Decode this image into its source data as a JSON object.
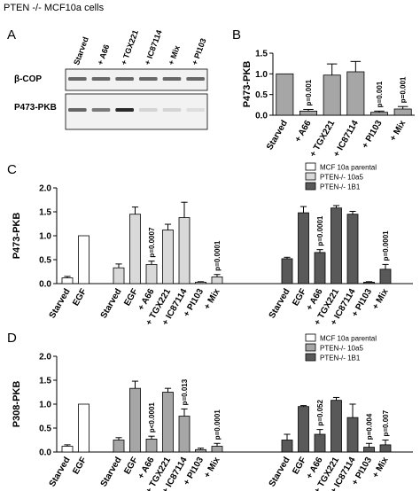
{
  "figure_title": "PTEN -/- MCF10a cells",
  "panel_labels": [
    "A",
    "B",
    "C",
    "D"
  ],
  "colors": {
    "white_fill": "#ffffff",
    "light_gray": "#d9d9d9",
    "medium_gray": "#a6a6a6",
    "dark_gray": "#595959",
    "black": "#000000"
  },
  "western_blot": {
    "lanes": [
      "Starved",
      "+ A66",
      "+ TGX221",
      "+ IC87114",
      "+ Mix",
      "+ PI103"
    ],
    "bands": [
      "β-COP",
      "P473-PKB"
    ]
  },
  "chart_data": [
    {
      "panel": "B",
      "type": "bar",
      "ylabel": "P473-PKB",
      "ylim": [
        0,
        1.5
      ],
      "yticks": [
        "0.0",
        "0.5",
        "1.0",
        "1.5"
      ],
      "categories": [
        "Starved",
        "+ A66",
        "+ TGX221",
        "+ IC87114",
        "+ PI103",
        "+ Mix"
      ],
      "values": [
        1.0,
        0.1,
        0.97,
        1.05,
        0.07,
        0.15
      ],
      "errors": [
        0,
        0.04,
        0.27,
        0.25,
        0.03,
        0.06
      ],
      "annotations": [
        "",
        "p=0.001",
        "",
        "",
        "p=0.001",
        "p=0.001"
      ]
    },
    {
      "panel": "C",
      "type": "bar",
      "ylabel": "P473-PKB",
      "ylim": [
        0,
        2.0
      ],
      "yticks": [
        "0.0",
        "0.5",
        "1.0",
        "1.5",
        "2.0"
      ],
      "legend": [
        {
          "name": "MCF 10a parental",
          "color": "#ffffff"
        },
        {
          "name": "PTEN-/- 10a5",
          "color": "#d9d9d9"
        },
        {
          "name": "PTEN-/- 1B1",
          "color": "#595959"
        }
      ],
      "groups": [
        {
          "series": 0,
          "categories": [
            "Starved",
            "EGF"
          ],
          "values": [
            0.12,
            1.0
          ],
          "errors": [
            0.03,
            0
          ]
        },
        {
          "series": 1,
          "categories": [
            "Starved",
            "EGF",
            "+ A66",
            "+ TGX221",
            "+ IC87114",
            "+ PI103",
            "+ Mix"
          ],
          "values": [
            0.33,
            1.45,
            0.4,
            1.12,
            1.38,
            0.03,
            0.14
          ],
          "errors": [
            0.08,
            0.15,
            0.07,
            0.12,
            0.32,
            0.01,
            0.05
          ],
          "annotations": [
            "",
            "",
            "p=0.0007",
            "",
            "",
            "",
            "p=0.0001"
          ]
        },
        {
          "series": 2,
          "categories": [
            "Starved",
            "EGF",
            "+ A66",
            "+ TGX221",
            "+ IC87114",
            "+ PI103",
            "+ Mix"
          ],
          "values": [
            0.52,
            1.48,
            0.65,
            1.58,
            1.45,
            0.03,
            0.3
          ],
          "errors": [
            0.03,
            0.13,
            0.06,
            0.05,
            0.06,
            0.01,
            0.1
          ],
          "annotations": [
            "",
            "",
            "p=0.0001",
            "",
            "",
            "",
            "p=0.0001"
          ]
        }
      ]
    },
    {
      "panel": "D",
      "type": "bar",
      "ylabel": "P308-PKB",
      "ylim": [
        0,
        2.0
      ],
      "yticks": [
        "0.0",
        "0.5",
        "1.0",
        "1.5",
        "2.0"
      ],
      "legend": [
        {
          "name": "MCF 10a parental",
          "color": "#ffffff"
        },
        {
          "name": "PTEN-/- 10a5",
          "color": "#a6a6a6"
        },
        {
          "name": "PTEN-/- 1B1",
          "color": "#595959"
        }
      ],
      "groups": [
        {
          "series": 0,
          "categories": [
            "Starved",
            "EGF"
          ],
          "values": [
            0.12,
            1.0
          ],
          "errors": [
            0.03,
            0
          ]
        },
        {
          "series": 1,
          "categories": [
            "Starved",
            "EGF",
            "+ A66",
            "+ TGX221",
            "+ IC87114",
            "+ PI103",
            "+ Mix"
          ],
          "values": [
            0.25,
            1.33,
            0.27,
            1.25,
            0.75,
            0.05,
            0.12
          ],
          "errors": [
            0.05,
            0.15,
            0.06,
            0.08,
            0.15,
            0.03,
            0.06
          ],
          "annotations": [
            "",
            "",
            "p<0.0001",
            "",
            "p=0.013",
            "",
            "p=0.0001"
          ]
        },
        {
          "series": 2,
          "categories": [
            "Starved",
            "EGF",
            "+ A66",
            "+ TGX221",
            "+ IC87114",
            "+ PI103",
            "+ Mix"
          ],
          "values": [
            0.25,
            0.95,
            0.37,
            1.08,
            0.72,
            0.1,
            0.15
          ],
          "errors": [
            0.12,
            0.02,
            0.1,
            0.06,
            0.28,
            0.08,
            0.1
          ],
          "annotations": [
            "",
            "",
            "p=0.052",
            "",
            "",
            "p=0.004",
            "p=0.007"
          ]
        }
      ]
    }
  ]
}
